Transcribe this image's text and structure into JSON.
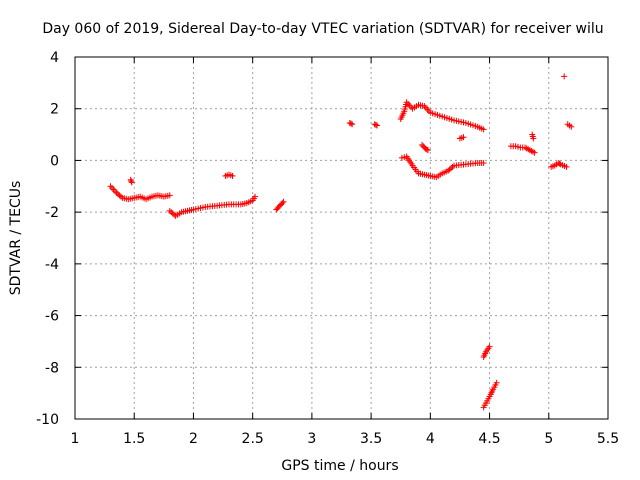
{
  "chart_data": {
    "type": "scatter",
    "title": "Day 060 of 2019, Sidereal Day-to-day VTEC variation (SDTVAR) for receiver wilu",
    "xlabel": "GPS time / hours",
    "ylabel": "SDTVAR / TECUs",
    "xlim": [
      1,
      5.5
    ],
    "ylim": [
      -10,
      4
    ],
    "xticks": [
      "1",
      "1.5",
      "2",
      "2.5",
      "3",
      "3.5",
      "4",
      "4.5",
      "5",
      "5.5"
    ],
    "yticks": [
      "-10",
      "-8",
      "-6",
      "-4",
      "-2",
      "0",
      "2",
      "4"
    ],
    "grid": true,
    "marker": "plus",
    "color": "#ff0000",
    "series": [
      {
        "name": "SDTVAR",
        "segments": [
          [
            [
              1.3,
              -1.0
            ],
            [
              1.35,
              -1.25
            ],
            [
              1.4,
              -1.45
            ],
            [
              1.45,
              -1.5
            ],
            [
              1.5,
              -1.45
            ],
            [
              1.55,
              -1.4
            ],
            [
              1.6,
              -1.5
            ],
            [
              1.65,
              -1.4
            ],
            [
              1.7,
              -1.35
            ],
            [
              1.75,
              -1.4
            ],
            [
              1.8,
              -1.35
            ]
          ],
          [
            [
              1.47,
              -0.75
            ],
            [
              1.48,
              -0.85
            ]
          ],
          [
            [
              1.8,
              -1.95
            ],
            [
              1.85,
              -2.15
            ],
            [
              1.9,
              -2.0
            ],
            [
              1.95,
              -1.95
            ],
            [
              2.0,
              -1.9
            ],
            [
              2.1,
              -1.8
            ],
            [
              2.2,
              -1.75
            ],
            [
              2.3,
              -1.7
            ],
            [
              2.4,
              -1.7
            ],
            [
              2.45,
              -1.65
            ],
            [
              2.5,
              -1.55
            ],
            [
              2.52,
              -1.4
            ]
          ],
          [
            [
              2.27,
              -0.6
            ],
            [
              2.3,
              -0.55
            ],
            [
              2.33,
              -0.6
            ]
          ],
          [
            [
              2.7,
              -1.9
            ],
            [
              2.73,
              -1.75
            ],
            [
              2.76,
              -1.6
            ]
          ],
          [
            [
              3.32,
              1.45
            ],
            [
              3.34,
              1.4
            ]
          ],
          [
            [
              3.53,
              1.4
            ],
            [
              3.55,
              1.35
            ]
          ],
          [
            [
              3.75,
              1.6
            ],
            [
              3.78,
              1.9
            ],
            [
              3.8,
              2.25
            ],
            [
              3.85,
              2.0
            ],
            [
              3.9,
              2.15
            ],
            [
              3.95,
              2.1
            ],
            [
              4.0,
              1.85
            ],
            [
              4.1,
              1.7
            ],
            [
              4.2,
              1.55
            ],
            [
              4.3,
              1.45
            ],
            [
              4.4,
              1.3
            ],
            [
              4.45,
              1.2
            ]
          ],
          [
            [
              3.76,
              0.1
            ],
            [
              3.8,
              0.15
            ],
            [
              3.85,
              -0.2
            ],
            [
              3.9,
              -0.5
            ],
            [
              3.95,
              -0.55
            ],
            [
              4.0,
              -0.6
            ],
            [
              4.05,
              -0.65
            ],
            [
              4.1,
              -0.5
            ],
            [
              4.15,
              -0.4
            ],
            [
              4.2,
              -0.2
            ],
            [
              4.3,
              -0.15
            ],
            [
              4.4,
              -0.1
            ],
            [
              4.45,
              -0.1
            ]
          ],
          [
            [
              3.93,
              0.6
            ],
            [
              3.96,
              0.45
            ],
            [
              3.98,
              0.4
            ]
          ],
          [
            [
              4.25,
              0.85
            ],
            [
              4.28,
              0.9
            ]
          ],
          [
            [
              4.45,
              -7.6
            ],
            [
              4.47,
              -7.4
            ],
            [
              4.5,
              -7.2
            ]
          ],
          [
            [
              4.45,
              -9.55
            ],
            [
              4.48,
              -9.3
            ],
            [
              4.51,
              -9.05
            ],
            [
              4.53,
              -8.85
            ],
            [
              4.56,
              -8.6
            ]
          ],
          [
            [
              4.68,
              0.55
            ],
            [
              4.72,
              0.55
            ],
            [
              4.76,
              0.5
            ],
            [
              4.8,
              0.5
            ],
            [
              4.84,
              0.4
            ],
            [
              4.88,
              0.3
            ]
          ],
          [
            [
              4.86,
              1.0
            ],
            [
              4.87,
              0.85
            ]
          ],
          [
            [
              5.02,
              -0.25
            ],
            [
              5.05,
              -0.2
            ],
            [
              5.08,
              -0.1
            ],
            [
              5.1,
              -0.15
            ],
            [
              5.15,
              -0.25
            ]
          ],
          [
            [
              5.13,
              3.25
            ]
          ],
          [
            [
              5.16,
              1.4
            ],
            [
              5.19,
              1.3
            ]
          ]
        ]
      }
    ]
  }
}
